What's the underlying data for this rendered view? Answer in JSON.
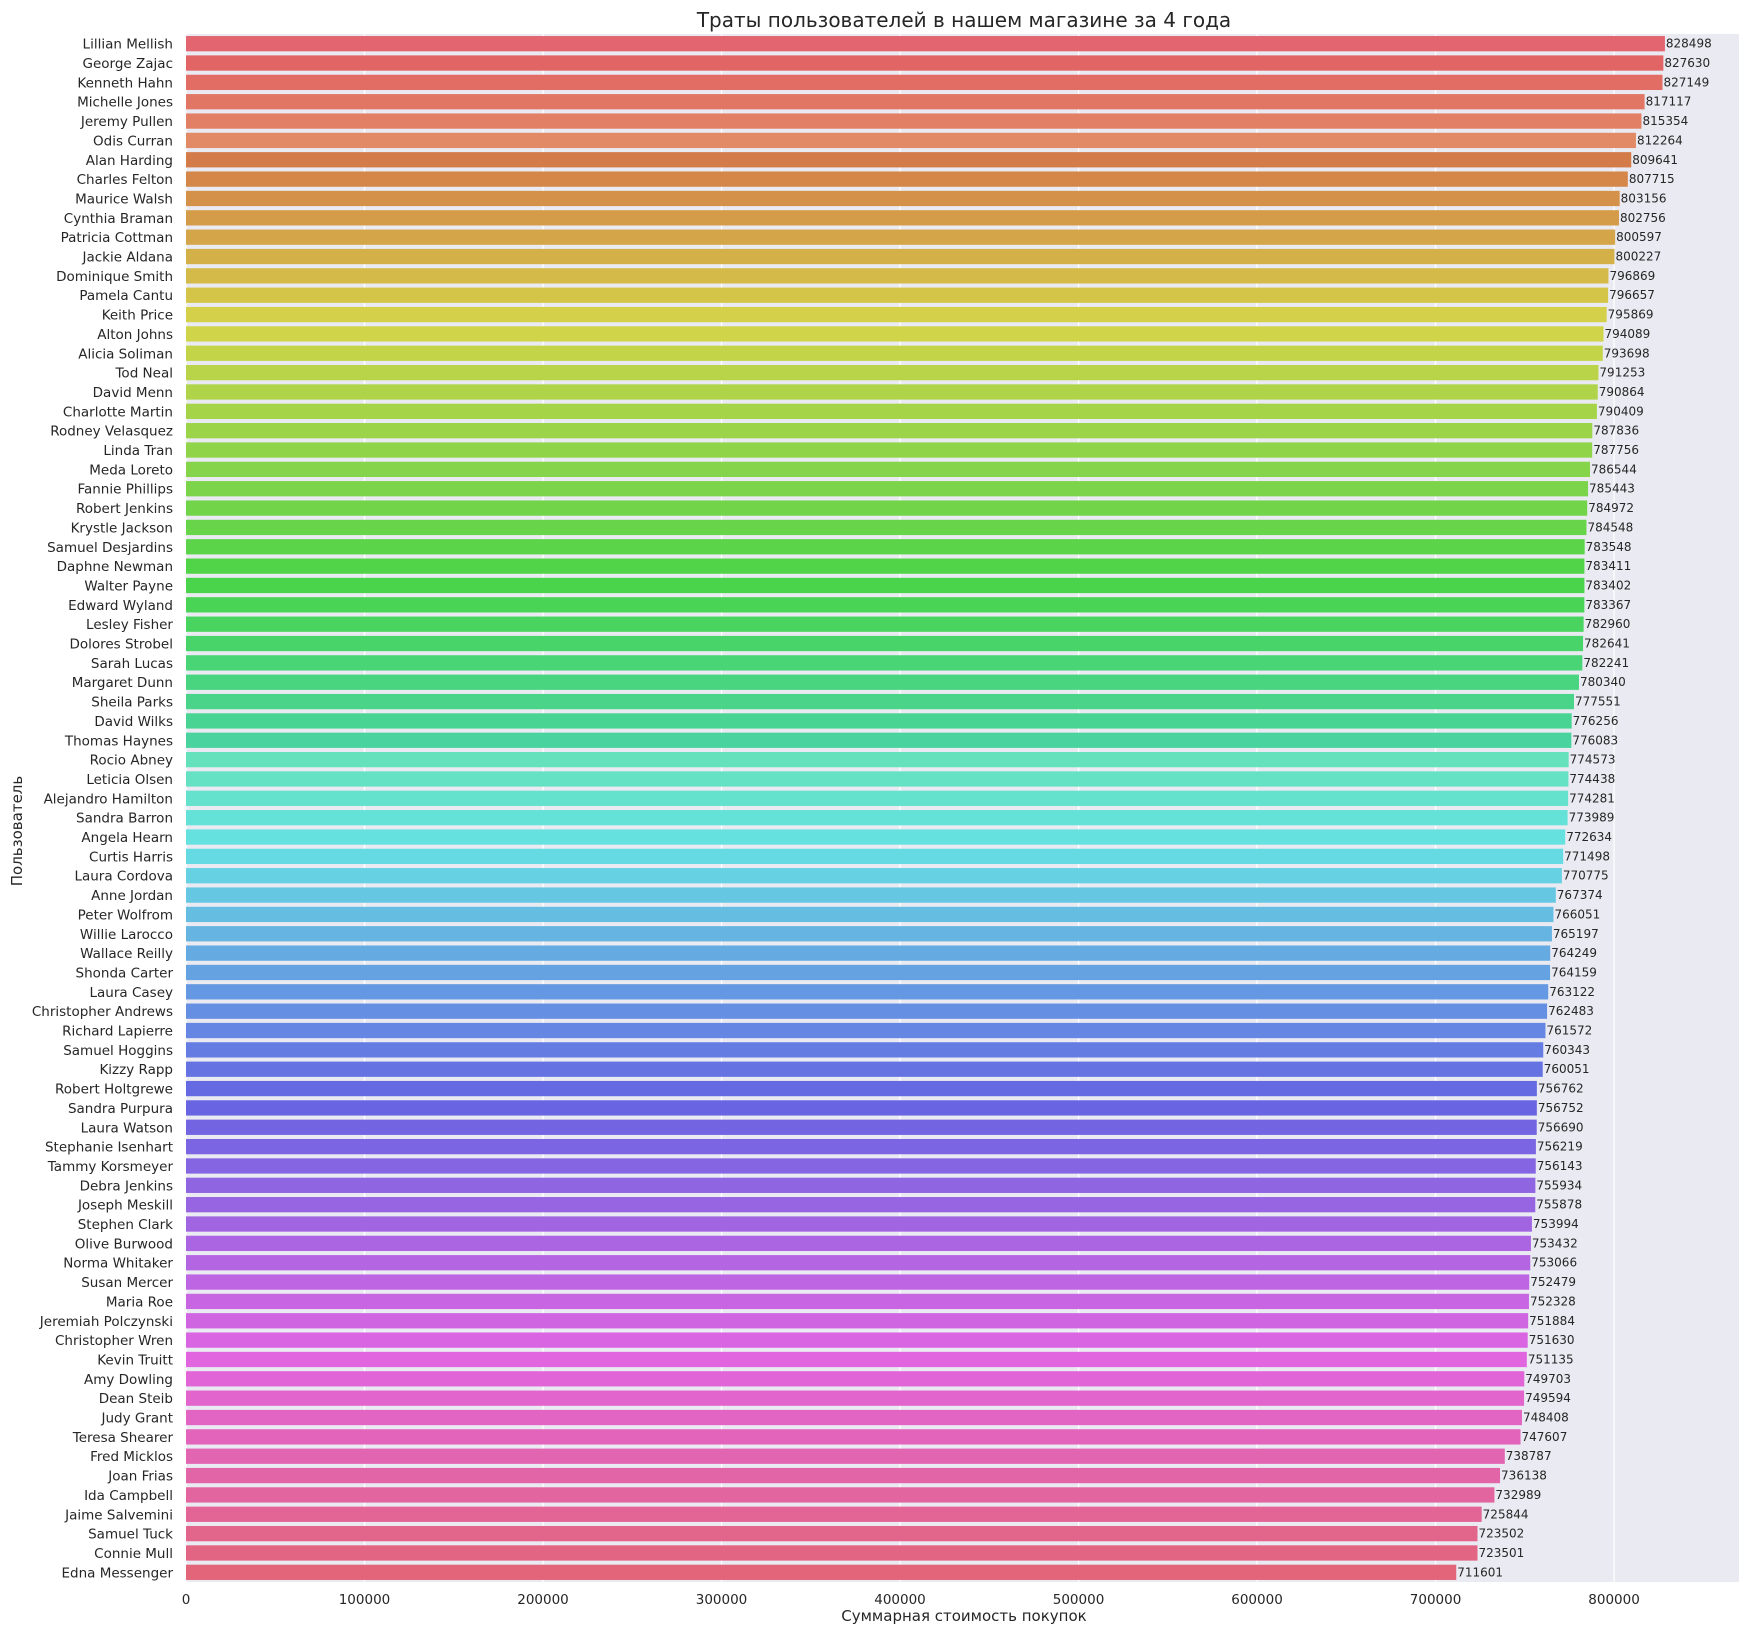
{
  "chart_data": {
    "type": "bar",
    "orientation": "horizontal",
    "title": "Траты пользователей в нашем магазине за 4 года",
    "xlabel": "Суммарная стоимость покупок",
    "ylabel": "Пользователь",
    "xlim": [
      0,
      870000
    ],
    "xticks": [
      0,
      100000,
      200000,
      300000,
      400000,
      500000,
      600000,
      700000,
      800000
    ],
    "xtick_labels": [
      "0",
      "100000",
      "200000",
      "300000",
      "400000",
      "500000",
      "600000",
      "700000",
      "800000"
    ],
    "grid": true,
    "background": "#eaeaf2",
    "categories": [
      "Lillian Mellish",
      "George Zajac",
      "Kenneth Hahn",
      "Michelle Jones",
      "Jeremy Pullen",
      "Odis Curran",
      "Alan Harding",
      "Charles Felton",
      "Maurice Walsh",
      "Cynthia Braman",
      "Patricia Cottman",
      "Jackie Aldana",
      "Dominique Smith",
      "Pamela Cantu",
      "Keith Price",
      "Alton Johns",
      "Alicia Soliman",
      "Tod Neal",
      "David Menn",
      "Charlotte Martin",
      "Rodney Velasquez",
      "Linda Tran",
      "Meda Loreto",
      "Fannie Phillips",
      "Robert Jenkins",
      "Krystle Jackson",
      "Samuel Desjardins",
      "Daphne Newman",
      "Walter Payne",
      "Edward Wyland",
      "Lesley Fisher",
      "Dolores Strobel",
      "Sarah Lucas",
      "Margaret Dunn",
      "Sheila Parks",
      "David Wilks",
      "Thomas Haynes",
      "Rocio Abney",
      "Leticia Olsen",
      "Alejandro Hamilton",
      "Sandra Barron",
      "Angela Hearn",
      "Curtis Harris",
      "Laura Cordova",
      "Anne Jordan",
      "Peter Wolfrom",
      "Willie Larocco",
      "Wallace Reilly",
      "Shonda Carter",
      "Laura Casey",
      "Christopher Andrews",
      "Richard Lapierre",
      "Samuel Hoggins",
      "Kizzy Rapp",
      "Robert Holtgrewe",
      "Sandra Purpura",
      "Laura Watson",
      "Stephanie Isenhart",
      "Tammy Korsmeyer",
      "Debra Jenkins",
      "Joseph Meskill",
      "Stephen Clark",
      "Olive Burwood",
      "Norma Whitaker",
      "Susan Mercer",
      "Maria Roe",
      "Jeremiah Polczynski",
      "Christopher Wren",
      "Kevin Truitt",
      "Amy Dowling",
      "Dean Steib",
      "Judy Grant",
      "Teresa Shearer",
      "Fred Micklos",
      "Joan Frias",
      "Ida Campbell",
      "Jaime Salvemini",
      "Samuel Tuck",
      "Connie Mull",
      "Edna Messenger"
    ],
    "values": [
      828498,
      827630,
      827149,
      817117,
      815354,
      812264,
      809641,
      807715,
      803156,
      802756,
      800597,
      800227,
      796869,
      796657,
      795869,
      794089,
      793698,
      791253,
      790864,
      790409,
      787836,
      787756,
      786544,
      785443,
      784972,
      784548,
      783548,
      783411,
      783402,
      783367,
      782960,
      782641,
      782241,
      780340,
      777551,
      776256,
      776083,
      774573,
      774438,
      774281,
      773989,
      772634,
      771498,
      770775,
      767374,
      766051,
      765197,
      764249,
      764159,
      763122,
      762483,
      761572,
      760343,
      760051,
      756762,
      756752,
      756690,
      756219,
      756143,
      755934,
      755878,
      753994,
      753432,
      753066,
      752479,
      752328,
      751884,
      751630,
      751135,
      749703,
      749594,
      748408,
      747607,
      738787,
      736138,
      732989,
      725844,
      723502,
      723501,
      711601
    ],
    "data_labels": [
      "828498",
      "827630",
      "827149",
      "817117",
      "815354",
      "812264",
      "809641",
      "807715",
      "803156",
      "802756",
      "800597",
      "800227",
      "796869",
      "796657",
      "795869",
      "794089",
      "793698",
      "791253",
      "790864",
      "790409",
      "787836",
      "787756",
      "786544",
      "785443",
      "784972",
      "784548",
      "783548",
      "783411",
      "783402",
      "783367",
      "782960",
      "782641",
      "782241",
      "780340",
      "777551",
      "776256",
      "776083",
      "774573",
      "774438",
      "774281",
      "773989",
      "772634",
      "771498",
      "770775",
      "767374",
      "766051",
      "765197",
      "764249",
      "764159",
      "763122",
      "762483",
      "761572",
      "760343",
      "760051",
      "756762",
      "756752",
      "756690",
      "756219",
      "756143",
      "755934",
      "755878",
      "753994",
      "753432",
      "753066",
      "752479",
      "752328",
      "751884",
      "751630",
      "751135",
      "749703",
      "749594",
      "748408",
      "747607",
      "738787",
      "736138",
      "732989",
      "725844",
      "723502",
      "723501",
      "711601"
    ],
    "palette": "husl-sequential"
  }
}
